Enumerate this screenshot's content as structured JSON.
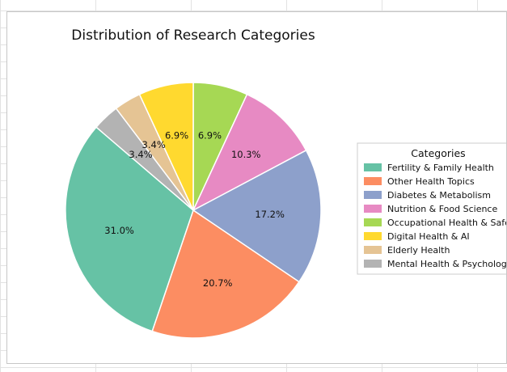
{
  "chart_data": {
    "type": "pie",
    "title": "Distribution of Research Categories",
    "legend_title": "Categories",
    "legend_position": "right",
    "start_angle_deg": 90,
    "direction": "clockwise",
    "slices": [
      {
        "label": "Occupational Health & Safety",
        "legend_text": "Occupational Health & Safe",
        "value": 6.9,
        "display": "6.9%",
        "color": "#a6d854"
      },
      {
        "label": "Nutrition & Food Science",
        "legend_text": "Nutrition & Food Science",
        "value": 10.3,
        "display": "10.3%",
        "color": "#e78ac3"
      },
      {
        "label": "Diabetes & Metabolism",
        "legend_text": "Diabetes & Metabolism",
        "value": 17.2,
        "display": "17.2%",
        "color": "#8da0cb"
      },
      {
        "label": "Other Health Topics",
        "legend_text": "Other Health Topics",
        "value": 20.7,
        "display": "20.7%",
        "color": "#fc8d62"
      },
      {
        "label": "Fertility & Family Health",
        "legend_text": "Fertility & Family Health",
        "value": 31.0,
        "display": "31.0%",
        "color": "#66c2a5"
      },
      {
        "label": "Mental Health & Psychology",
        "legend_text": "Mental Health & Psycholog",
        "value": 3.4,
        "display": "3.4%",
        "color": "#b3b3b3"
      },
      {
        "label": "Elderly Health",
        "legend_text": "Elderly Health",
        "value": 3.4,
        "display": "3.4%",
        "color": "#e5c494"
      },
      {
        "label": "Digital Health & AI",
        "legend_text": "Digital Health & AI",
        "value": 6.9,
        "display": "6.9%",
        "color": "#ffd92f"
      }
    ],
    "legend_order": [
      "Fertility & Family Health",
      "Other Health Topics",
      "Diabetes & Metabolism",
      "Nutrition & Food Science",
      "Occupational Health & Safety",
      "Digital Health & AI",
      "Elderly Health",
      "Mental Health & Psychology"
    ]
  }
}
